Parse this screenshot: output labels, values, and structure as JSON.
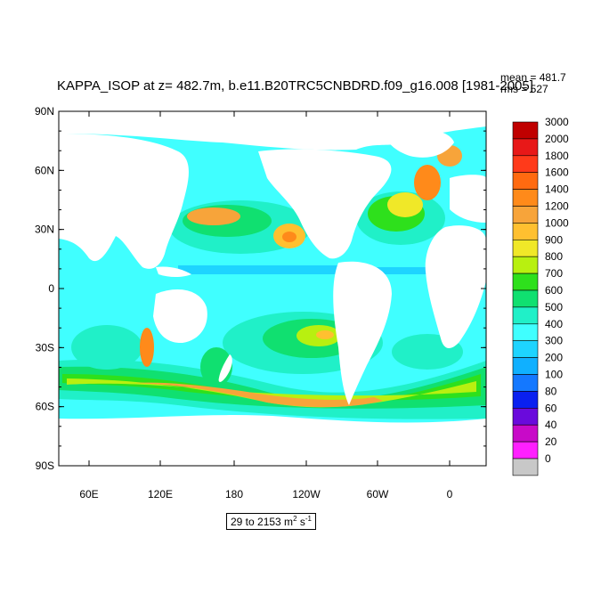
{
  "title": "KAPPA_ISOP at z= 482.7m, b.e11.B20TRC5CNBDRD.f09_g16.008 [1981-2005]",
  "stats": {
    "mean": "mean = 481.7",
    "rms": "rms = 527"
  },
  "range_label": {
    "prefix": "29 to 2153 m",
    "sup1": "2",
    "mid": " s",
    "sup2": "-1"
  },
  "lat_labels": [
    "90N",
    "60N",
    "30N",
    "0",
    "30S",
    "60S",
    "90S"
  ],
  "lon_labels": [
    "60E",
    "120E",
    "180",
    "120W",
    "60W",
    "0"
  ],
  "colorbar": {
    "labels": [
      "3000",
      "2000",
      "1800",
      "1600",
      "1400",
      "1200",
      "1000",
      "900",
      "800",
      "700",
      "600",
      "500",
      "400",
      "300",
      "200",
      "100",
      "80",
      "60",
      "40",
      "20",
      "0"
    ],
    "colors": [
      "#c00000",
      "#e81818",
      "#ff3a1a",
      "#ff6a10",
      "#ff8a1a",
      "#f7a43a",
      "#ffc030",
      "#f0e828",
      "#b8f010",
      "#2ee01c",
      "#10e070",
      "#20f0c8",
      "#40ffff",
      "#1ed4ff",
      "#10b0ff",
      "#1478ff",
      "#0a20f0",
      "#6a0adc",
      "#c80ac8",
      "#ff20ff",
      "#c8c8c8"
    ]
  },
  "colors": {
    "land": "#ffffff",
    "ocean_base": "#40ffff",
    "frame": "#000000"
  }
}
